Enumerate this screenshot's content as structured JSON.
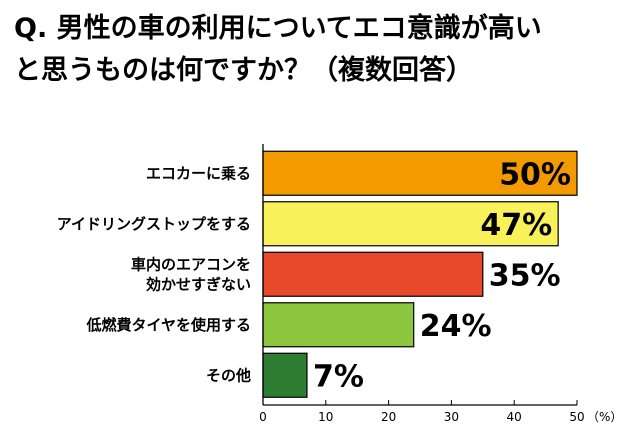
{
  "title_lines": [
    "Q. 男性の車の利用についてエコ意識が高い",
    "と思うものは何ですか？（複数回答）"
  ],
  "chart_data": {
    "type": "bar",
    "orientation": "horizontal",
    "categories": [
      [
        "エコカーに乗る"
      ],
      [
        "アイドリングストップをする"
      ],
      [
        "車内のエアコンを",
        "効かせすぎない"
      ],
      [
        "低燃費タイヤを使用する"
      ],
      [
        "その他"
      ]
    ],
    "values": [
      50,
      47,
      35,
      24,
      7
    ],
    "value_labels": [
      "50%",
      "47%",
      "35%",
      "24%",
      "7%"
    ],
    "bar_colors": [
      "#f39a00",
      "#f9f15a",
      "#e8492b",
      "#8cc63f",
      "#2e7d32"
    ],
    "xlim": [
      0,
      50
    ],
    "xticks": [
      "0",
      "10",
      "20",
      "30",
      "40",
      "50"
    ],
    "unit_label": "（%）",
    "grid": false
  }
}
